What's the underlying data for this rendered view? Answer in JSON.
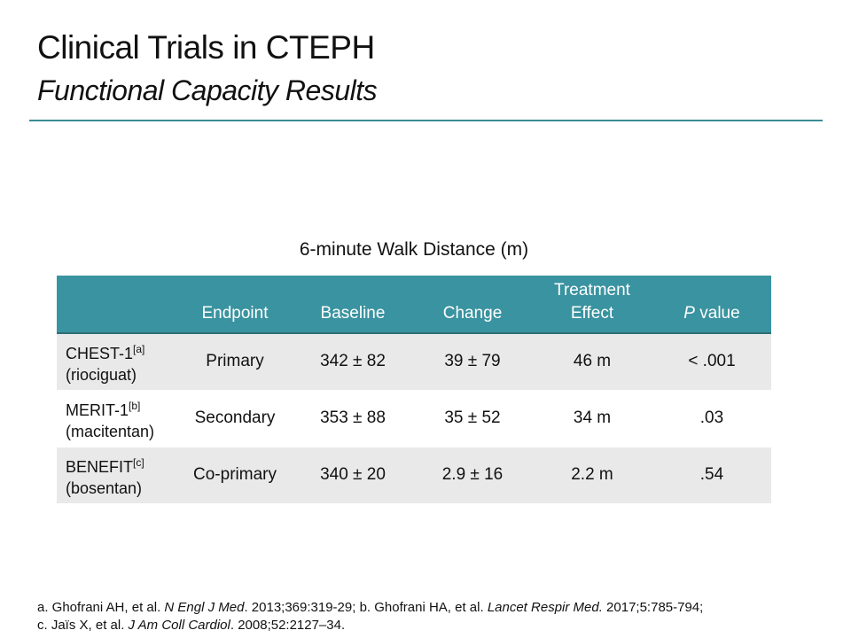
{
  "slide": {
    "title": "Clinical Trials in CTEPH",
    "subtitle": "Functional Capacity Results",
    "accent": "#3a93a0"
  },
  "table": {
    "caption": "6-minute Walk Distance (m)",
    "headers": [
      "",
      "Endpoint",
      "Baseline",
      "Change",
      "Treatment Effect",
      "P value"
    ],
    "header_p_italic": "P",
    "header_p_rest": " value",
    "rows": [
      {
        "trial": "CHEST-1",
        "ref": "[a]",
        "drug": "(riociguat)",
        "endpoint": "Primary",
        "baseline": "342 ± 82",
        "change": "39 ± 79",
        "effect": "46 m",
        "p": "< .001"
      },
      {
        "trial": "MERIT-1",
        "ref": "[b]",
        "drug": "(macitentan)",
        "endpoint": "Secondary",
        "baseline": "353 ± 88",
        "change": "35 ± 52",
        "effect": "34 m",
        "p": ".03"
      },
      {
        "trial": "BENEFIT",
        "ref": "[c]",
        "drug": "(bosentan)",
        "endpoint": "Co-primary",
        "baseline": "340 ± 20",
        "change": "2.9 ± 16",
        "effect": "2.2 m",
        "p": ".54"
      }
    ]
  },
  "footnote": {
    "a1": "a. Ghofrani AH, et al. ",
    "a2": "N Engl J Med",
    "a3": ". 2013;369:319-29; b. Ghofrani HA, et al. ",
    "a4": "Lancet Respir Med.",
    "a5": " 2017;5:785-794;",
    "c1": "c. Jaïs X, et al. ",
    "c2": "J Am Coll Cardiol",
    "c3": ". 2008;52:2127–34."
  }
}
